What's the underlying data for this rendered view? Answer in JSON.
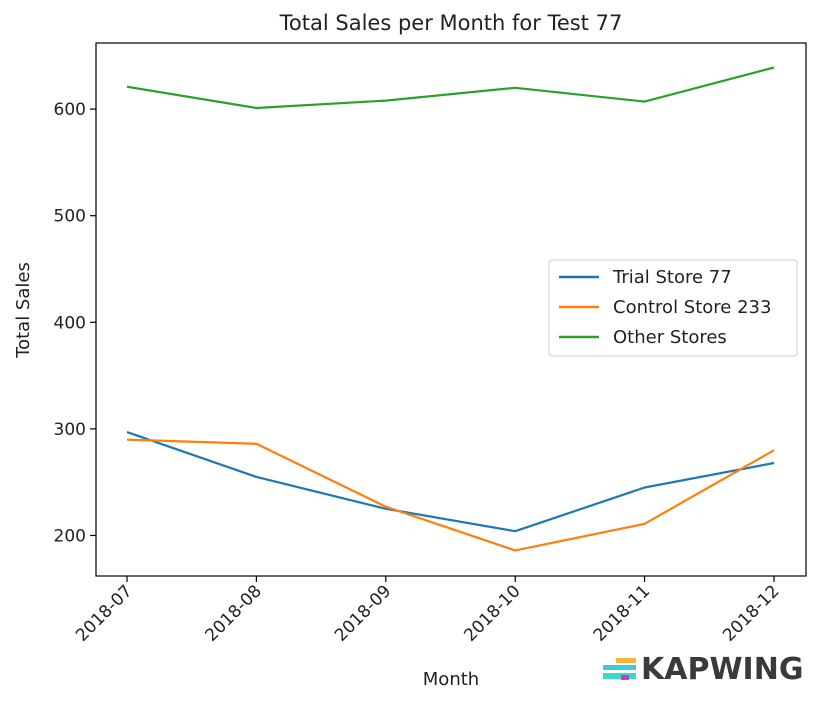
{
  "chart_data": {
    "type": "line",
    "title": "Total Sales per Month for Test 77",
    "xlabel": "Month",
    "ylabel": "Total Sales",
    "x": [
      "2018-07",
      "2018-08",
      "2018-09",
      "2018-10",
      "2018-11",
      "2018-12"
    ],
    "ylim": [
      162,
      662
    ],
    "yticks": [
      200,
      300,
      400,
      500,
      600
    ],
    "grid": false,
    "legend_position": "center-right",
    "series": [
      {
        "name": "Trial Store 77",
        "color": "#1f77b4",
        "values": [
          297,
          255,
          225,
          204,
          245,
          268
        ]
      },
      {
        "name": "Control Store 233",
        "color": "#ff7f0e",
        "values": [
          290,
          286,
          227,
          186,
          211,
          280
        ]
      },
      {
        "name": "Other Stores",
        "color": "#2ca02c",
        "values": [
          621,
          601,
          608,
          620,
          607,
          639
        ]
      }
    ]
  },
  "watermark": {
    "text": "KAPWING",
    "logo_icon": "kapwing-logo-icon"
  }
}
